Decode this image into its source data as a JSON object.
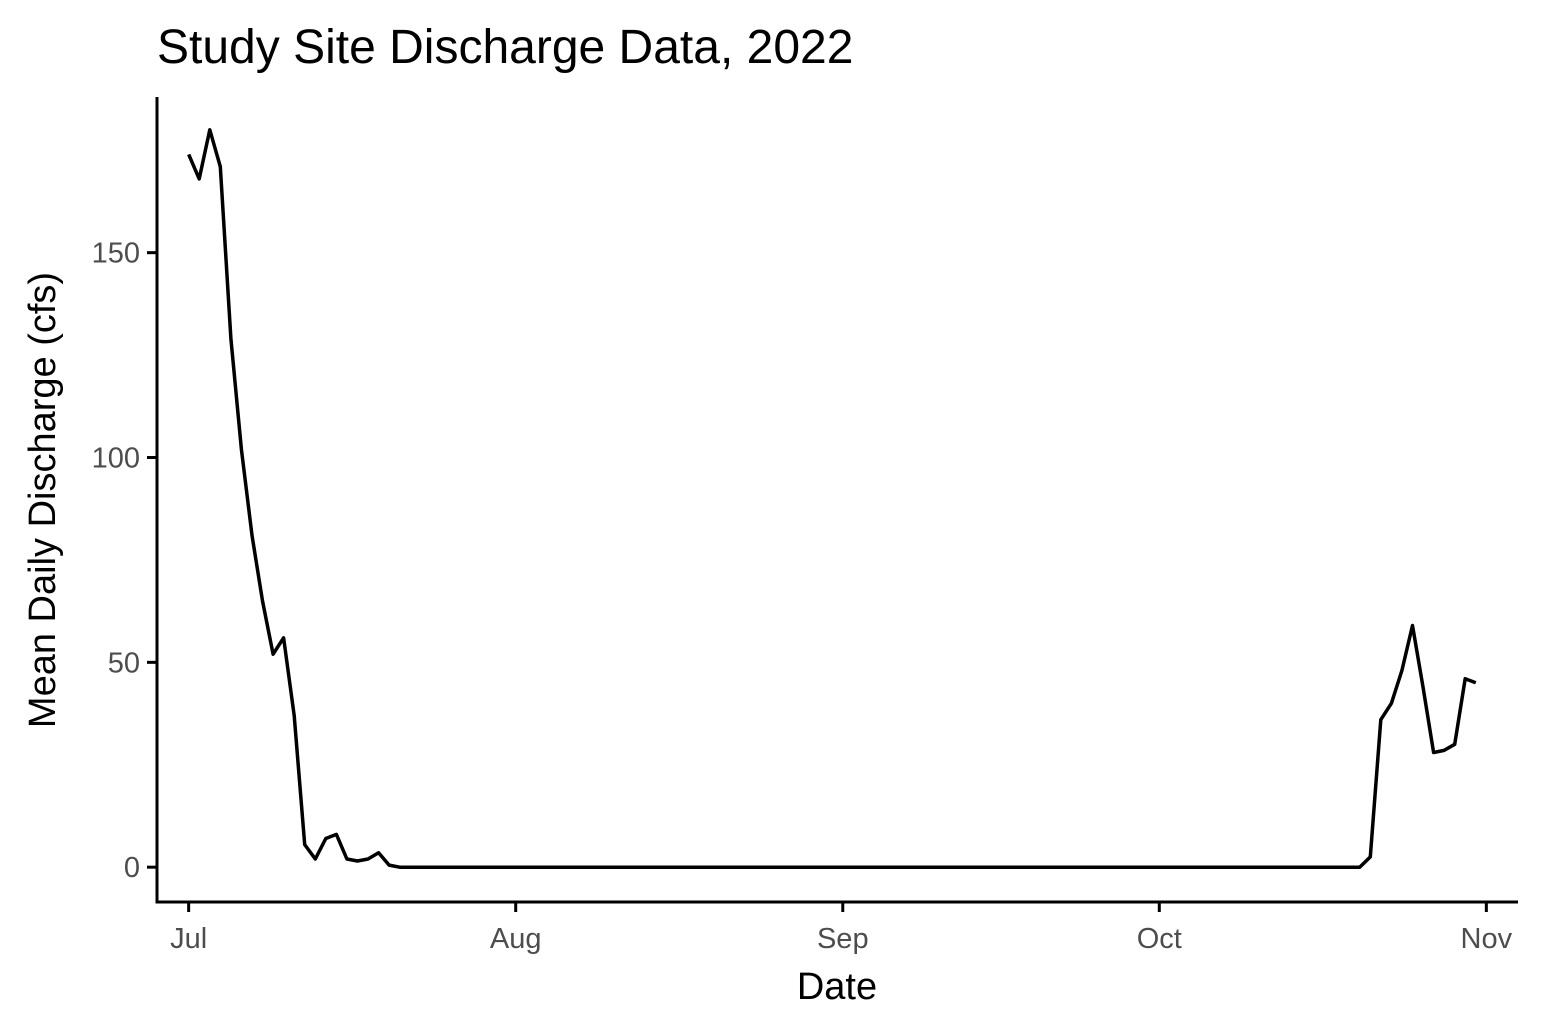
{
  "chart_data": {
    "type": "line",
    "title": "Study Site Discharge Data, 2022",
    "xlabel": "Date",
    "ylabel": "Mean Daily Discharge (cfs)",
    "x_axis": "date",
    "xlim": [
      "2022-06-28",
      "2022-11-04"
    ],
    "ylim": [
      -8.5,
      188
    ],
    "x_ticks": [
      {
        "date": "2022-07-01",
        "label": "Jul"
      },
      {
        "date": "2022-08-01",
        "label": "Aug"
      },
      {
        "date": "2022-09-01",
        "label": "Sep"
      },
      {
        "date": "2022-10-01",
        "label": "Oct"
      },
      {
        "date": "2022-11-01",
        "label": "Nov"
      }
    ],
    "y_ticks": [
      0,
      50,
      100,
      150
    ],
    "grid": false,
    "line_color": "#000000",
    "series": [
      {
        "x": [
          "2022-07-01",
          "2022-07-02",
          "2022-07-03",
          "2022-07-04",
          "2022-07-05",
          "2022-07-06",
          "2022-07-07",
          "2022-07-08",
          "2022-07-09",
          "2022-07-10",
          "2022-07-11",
          "2022-07-12",
          "2022-07-13",
          "2022-07-14",
          "2022-07-15",
          "2022-07-16",
          "2022-07-17",
          "2022-07-18",
          "2022-07-19",
          "2022-07-20",
          "2022-07-21",
          "2022-07-22",
          "2022-10-20",
          "2022-10-21",
          "2022-10-22",
          "2022-10-23",
          "2022-10-24",
          "2022-10-25",
          "2022-10-26",
          "2022-10-27",
          "2022-10-28",
          "2022-10-29",
          "2022-10-30",
          "2022-10-31"
        ],
        "y": [
          174,
          168,
          180,
          171,
          129,
          102,
          81,
          65,
          52,
          56,
          37,
          5.5,
          2,
          7,
          8,
          2,
          1.5,
          2,
          3.5,
          0.5,
          0,
          0,
          0,
          2.5,
          36,
          40,
          48,
          59,
          44,
          28,
          28.5,
          30,
          46,
          45
        ]
      }
    ]
  }
}
